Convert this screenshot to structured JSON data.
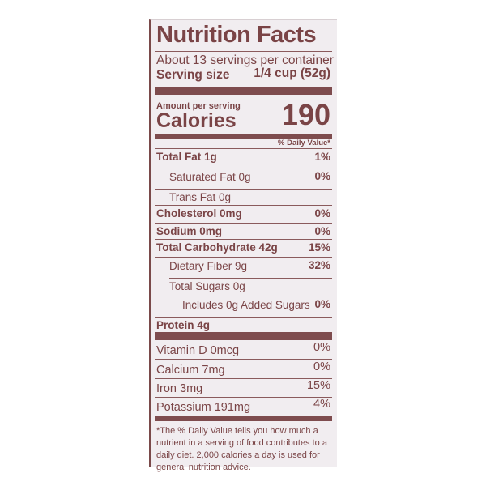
{
  "label": {
    "title": "Nutrition Facts",
    "servings": "About 13 servings per container",
    "serving_size_label": "Serving size",
    "serving_size_value": "1/4 cup (52g)",
    "amount_per_serving": "Amount per serving",
    "calories_label": "Calories",
    "calories_value": "190",
    "dv_header": "% Daily Value*",
    "nutrients": [
      {
        "name": "Total Fat 1g",
        "dv": "1%"
      },
      {
        "name": "Saturated Fat 0g",
        "dv": "0%"
      },
      {
        "name": "Trans Fat 0g",
        "dv": ""
      },
      {
        "name": "Cholesterol 0mg",
        "dv": "0%"
      },
      {
        "name": "Sodium 0mg",
        "dv": "0%"
      },
      {
        "name": "Total Carbohydrate 42g",
        "dv": "15%"
      },
      {
        "name": "Dietary Fiber 9g",
        "dv": "32%"
      },
      {
        "name": "Total Sugars 0g",
        "dv": ""
      },
      {
        "name": "Includes 0g Added Sugars",
        "dv": "0%"
      },
      {
        "name": "Protein 4g",
        "dv": ""
      }
    ],
    "vitamins": [
      {
        "name": "Vitamin D 0mcg",
        "dv": "0%"
      },
      {
        "name": "Calcium 7mg",
        "dv": "0%"
      },
      {
        "name": "Iron 3mg",
        "dv": "15%"
      },
      {
        "name": "Potassium 191mg",
        "dv": "4%"
      }
    ],
    "footnote": "*The % Daily Value tells you how much a nutrient in a serving of food contributes to a daily diet. 2,000 calories a day is used for general nutrition advice.",
    "colors": {
      "ink": "#7a4446",
      "background": "#f1edf0"
    }
  }
}
